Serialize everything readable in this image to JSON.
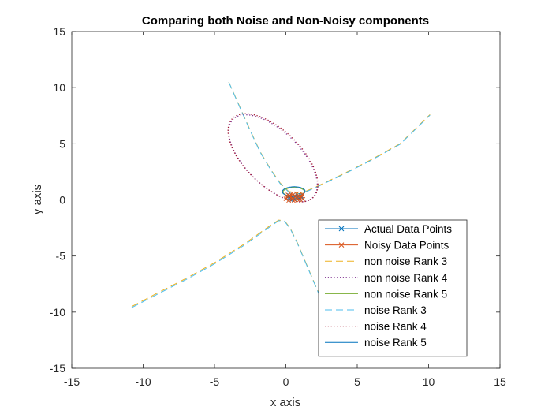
{
  "chart_data": {
    "type": "line",
    "title": "Comparing both Noise and Non-Noisy components",
    "xlabel": "x axis",
    "ylabel": "y axis",
    "xlim": [
      -15,
      15
    ],
    "ylim": [
      -15,
      15
    ],
    "xticks": [
      -15,
      -10,
      -5,
      0,
      5,
      10,
      15
    ],
    "yticks": [
      -15,
      -10,
      -5,
      0,
      5,
      10,
      15
    ],
    "grid": false,
    "legend_position": "bottom-right",
    "colors": {
      "blue": "#0072BD",
      "orange": "#D95319",
      "yellow": "#EDB120",
      "purple": "#7E2F8E",
      "green": "#77AC30",
      "cyan": "#4DBEEE",
      "darkred": "#A2142F",
      "axes": "#262626"
    },
    "series": [
      {
        "name": "Actual Data Points",
        "color": "#0072BD",
        "dash": "solid",
        "marker": "x",
        "points": [
          [
            0.15,
            0.25
          ],
          [
            0.25,
            0.4
          ],
          [
            0.35,
            0.1
          ],
          [
            0.45,
            0.3
          ],
          [
            0.55,
            0.2
          ],
          [
            0.65,
            0.35
          ],
          [
            0.75,
            0.15
          ],
          [
            0.85,
            0.3
          ],
          [
            0.95,
            0.2
          ],
          [
            1.05,
            0.4
          ],
          [
            0.3,
            0.05
          ],
          [
            0.6,
            0.05
          ],
          [
            0.9,
            0.1
          ],
          [
            1.1,
            0.25
          ],
          [
            0.2,
            0.15
          ]
        ]
      },
      {
        "name": "Noisy Data Points",
        "color": "#D95319",
        "dash": "solid",
        "marker": "x",
        "points": [
          [
            0.0,
            0.1
          ],
          [
            0.1,
            0.3
          ],
          [
            0.2,
            -0.05
          ],
          [
            0.3,
            0.35
          ],
          [
            0.4,
            0.15
          ],
          [
            0.5,
            0.45
          ],
          [
            0.6,
            0.0
          ],
          [
            0.7,
            0.3
          ],
          [
            0.8,
            0.1
          ],
          [
            0.9,
            0.4
          ],
          [
            1.0,
            0.15
          ],
          [
            1.1,
            0.35
          ],
          [
            1.2,
            0.05
          ],
          [
            0.35,
            0.5
          ],
          [
            0.75,
            0.55
          ],
          [
            0.55,
            -0.1
          ],
          [
            0.95,
            0.0
          ],
          [
            0.15,
            0.45
          ],
          [
            1.15,
            0.5
          ],
          [
            0.45,
            0.05
          ]
        ]
      },
      {
        "name": "non noise Rank 3",
        "color": "#EDB120",
        "dash": "dashed",
        "marker": "none",
        "curves": [
          [
            [
              -10.8,
              -9.5
            ],
            [
              -9,
              -8.3
            ],
            [
              -7,
              -7.0
            ],
            [
              -5,
              -5.6
            ],
            [
              -3,
              -4.0
            ],
            [
              -2,
              -3.1
            ],
            [
              -1,
              -2.2
            ],
            [
              -0.5,
              -1.8
            ],
            [
              -0.1,
              -1.85
            ],
            [
              0.3,
              -2.5
            ],
            [
              0.8,
              -3.8
            ],
            [
              1.3,
              -5.3
            ],
            [
              1.8,
              -6.8
            ],
            [
              2.3,
              -8.3
            ]
          ],
          [
            [
              -4,
              10.5
            ],
            [
              -3.3,
              8.5
            ],
            [
              -2.5,
              6.2
            ],
            [
              -1.8,
              4.3
            ],
            [
              -1,
              2.6
            ],
            [
              -0.4,
              1.5
            ],
            [
              0.2,
              0.75
            ],
            [
              1.0,
              0.55
            ],
            [
              2.0,
              1.1
            ],
            [
              4,
              2.3
            ],
            [
              6,
              3.6
            ],
            [
              8,
              5.0
            ],
            [
              10.1,
              7.6
            ]
          ]
        ]
      },
      {
        "name": "non noise Rank 4",
        "color": "#7E2F8E",
        "dash": "dotted",
        "marker": "none",
        "ellipse": {
          "cx": -0.9,
          "cy": 3.7,
          "rx": 4.5,
          "ry": 2.1,
          "angle_deg": -55
        }
      },
      {
        "name": "non noise Rank 5",
        "color": "#77AC30",
        "dash": "solid",
        "marker": "none",
        "ellipse": {
          "cx": 0.55,
          "cy": 0.72,
          "rx": 0.75,
          "ry": 0.38,
          "angle_deg": 2
        }
      },
      {
        "name": "noise Rank 3",
        "color": "#4DBEEE",
        "dash": "dashed",
        "marker": "none",
        "curves": [
          [
            [
              -10.8,
              -9.6
            ],
            [
              -9,
              -8.4
            ],
            [
              -7,
              -7.1
            ],
            [
              -5,
              -5.7
            ],
            [
              -3,
              -4.1
            ],
            [
              -2,
              -3.2
            ],
            [
              -1,
              -2.3
            ],
            [
              -0.5,
              -1.85
            ],
            [
              -0.1,
              -1.9
            ],
            [
              0.3,
              -2.55
            ],
            [
              0.8,
              -3.85
            ],
            [
              1.3,
              -5.35
            ],
            [
              1.8,
              -6.85
            ],
            [
              2.3,
              -8.35
            ]
          ],
          [
            [
              -4,
              10.5
            ],
            [
              -3.3,
              8.45
            ],
            [
              -2.5,
              6.15
            ],
            [
              -1.8,
              4.25
            ],
            [
              -1,
              2.55
            ],
            [
              -0.4,
              1.45
            ],
            [
              0.2,
              0.7
            ],
            [
              1.0,
              0.5
            ],
            [
              2.0,
              1.05
            ],
            [
              4,
              2.25
            ],
            [
              6,
              3.55
            ],
            [
              8,
              4.95
            ],
            [
              10.1,
              7.55
            ]
          ]
        ]
      },
      {
        "name": "noise Rank 4",
        "color": "#A2142F",
        "dash": "dotted",
        "marker": "none",
        "ellipse": {
          "cx": -0.9,
          "cy": 3.75,
          "rx": 4.55,
          "ry": 2.15,
          "angle_deg": -55
        }
      },
      {
        "name": "noise Rank 5",
        "color": "#0072BD",
        "dash": "solid",
        "marker": "none",
        "ellipse": {
          "cx": 0.55,
          "cy": 0.75,
          "rx": 0.8,
          "ry": 0.42,
          "angle_deg": 2
        }
      }
    ]
  }
}
